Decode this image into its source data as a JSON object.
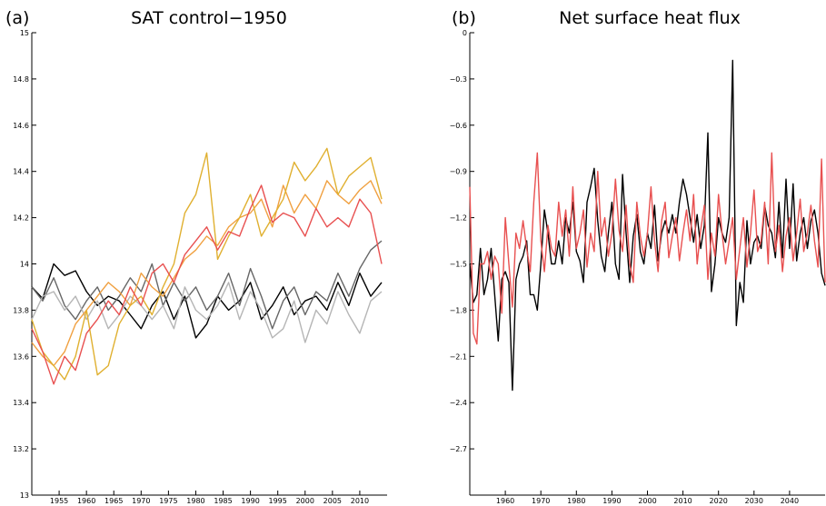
{
  "chart_data": [
    {
      "type": "line",
      "panel_label": "(a)",
      "title": "SAT control−1950",
      "xlabel": "",
      "ylabel": "",
      "xlim": [
        1950,
        2015
      ],
      "ylim": [
        13,
        15
      ],
      "grid": false,
      "legend": "none",
      "x_ticks": [
        1955,
        1960,
        1965,
        1970,
        1975,
        1980,
        1985,
        1990,
        1995,
        2000,
        2005,
        2010
      ],
      "y_ticks": [
        13,
        13.2,
        13.4,
        13.6,
        13.8,
        14,
        14.2,
        14.4,
        14.6,
        14.8,
        15
      ],
      "y_tick_labels": [
        "13",
        "13.2",
        "13.4",
        "13.6",
        "13.8",
        "14",
        "14.2",
        "14.4",
        "14.6",
        "14.8",
        "15"
      ],
      "series": [
        {
          "color": "#000000",
          "x": [
            1950,
            1952,
            1954,
            1956,
            1958,
            1960,
            1962,
            1964,
            1966,
            1968,
            1970,
            1972,
            1974,
            1976,
            1978,
            1980,
            1982,
            1984,
            1986,
            1988,
            1990,
            1992,
            1994,
            1996,
            1998,
            2000,
            2002,
            2004,
            2006,
            2008,
            2010,
            2012,
            2014
          ],
          "y": [
            13.9,
            13.85,
            14.0,
            13.95,
            13.97,
            13.88,
            13.82,
            13.86,
            13.84,
            13.78,
            13.72,
            13.82,
            13.88,
            13.76,
            13.86,
            13.68,
            13.74,
            13.86,
            13.8,
            13.84,
            13.92,
            13.76,
            13.82,
            13.9,
            13.78,
            13.84,
            13.86,
            13.8,
            13.92,
            13.82,
            13.96,
            13.86,
            13.92
          ]
        },
        {
          "color": "#666666",
          "x": [
            1950,
            1952,
            1954,
            1956,
            1958,
            1960,
            1962,
            1964,
            1966,
            1968,
            1970,
            1972,
            1974,
            1976,
            1978,
            1980,
            1982,
            1984,
            1986,
            1988,
            1990,
            1992,
            1994,
            1996,
            1998,
            2000,
            2002,
            2004,
            2006,
            2008,
            2010,
            2012,
            2014
          ],
          "y": [
            13.9,
            13.84,
            13.94,
            13.82,
            13.76,
            13.84,
            13.9,
            13.8,
            13.86,
            13.94,
            13.88,
            14.0,
            13.82,
            13.92,
            13.84,
            13.9,
            13.8,
            13.86,
            13.96,
            13.82,
            13.98,
            13.86,
            13.72,
            13.84,
            13.9,
            13.78,
            13.88,
            13.84,
            13.96,
            13.86,
            13.98,
            14.06,
            14.1
          ]
        },
        {
          "color": "#b5b5b5",
          "x": [
            1950,
            1952,
            1954,
            1956,
            1958,
            1960,
            1962,
            1964,
            1966,
            1968,
            1970,
            1972,
            1974,
            1976,
            1978,
            1980,
            1982,
            1984,
            1986,
            1988,
            1990,
            1992,
            1994,
            1996,
            1998,
            2000,
            2002,
            2004,
            2006,
            2008,
            2010,
            2012,
            2014
          ],
          "y": [
            13.76,
            13.86,
            13.88,
            13.8,
            13.86,
            13.76,
            13.84,
            13.72,
            13.78,
            13.86,
            13.82,
            13.76,
            13.82,
            13.72,
            13.9,
            13.8,
            13.76,
            13.82,
            13.92,
            13.76,
            13.88,
            13.8,
            13.68,
            13.72,
            13.84,
            13.66,
            13.8,
            13.74,
            13.88,
            13.78,
            13.7,
            13.84,
            13.88
          ]
        },
        {
          "color": "#f0a040",
          "x": [
            1950,
            1952,
            1954,
            1956,
            1958,
            1960,
            1962,
            1964,
            1966,
            1968,
            1970,
            1972,
            1974,
            1976,
            1978,
            1980,
            1982,
            1984,
            1986,
            1988,
            1990,
            1992,
            1994,
            1996,
            1998,
            2000,
            2002,
            2004,
            2006,
            2008,
            2010,
            2012,
            2014
          ],
          "y": [
            13.66,
            13.6,
            13.56,
            13.62,
            13.74,
            13.8,
            13.86,
            13.92,
            13.88,
            13.82,
            13.96,
            13.9,
            13.86,
            13.94,
            14.02,
            14.06,
            14.12,
            14.08,
            14.16,
            14.2,
            14.22,
            14.28,
            14.16,
            14.34,
            14.22,
            14.3,
            14.24,
            14.36,
            14.3,
            14.26,
            14.32,
            14.36,
            14.26
          ]
        },
        {
          "color": "#e0b030",
          "x": [
            1950,
            1952,
            1954,
            1956,
            1958,
            1960,
            1962,
            1964,
            1966,
            1968,
            1970,
            1972,
            1974,
            1976,
            1978,
            1980,
            1982,
            1984,
            1986,
            1988,
            1990,
            1992,
            1994,
            1996,
            1998,
            2000,
            2002,
            2004,
            2006,
            2008,
            2010,
            2012,
            2014
          ],
          "y": [
            13.76,
            13.62,
            13.56,
            13.5,
            13.6,
            13.8,
            13.52,
            13.56,
            13.74,
            13.82,
            13.86,
            13.78,
            13.9,
            14.0,
            14.22,
            14.3,
            14.48,
            14.02,
            14.12,
            14.2,
            14.3,
            14.12,
            14.2,
            14.28,
            14.44,
            14.36,
            14.42,
            14.5,
            14.3,
            14.38,
            14.42,
            14.46,
            14.28
          ]
        },
        {
          "color": "#e85050",
          "x": [
            1950,
            1952,
            1954,
            1956,
            1958,
            1960,
            1962,
            1964,
            1966,
            1968,
            1970,
            1972,
            1974,
            1976,
            1978,
            1980,
            1982,
            1984,
            1986,
            1988,
            1990,
            1992,
            1994,
            1996,
            1998,
            2000,
            2002,
            2004,
            2006,
            2008,
            2010,
            2012,
            2014
          ],
          "y": [
            13.72,
            13.62,
            13.48,
            13.6,
            13.54,
            13.7,
            13.76,
            13.84,
            13.78,
            13.9,
            13.82,
            13.96,
            14.0,
            13.92,
            14.04,
            14.1,
            14.16,
            14.06,
            14.14,
            14.12,
            14.24,
            14.34,
            14.18,
            14.22,
            14.2,
            14.12,
            14.24,
            14.16,
            14.2,
            14.16,
            14.28,
            14.22,
            14.0
          ]
        }
      ]
    },
    {
      "type": "line",
      "panel_label": "(b)",
      "title": "Net surface heat flux",
      "xlabel": "",
      "ylabel": "",
      "xlim": [
        1950,
        2050
      ],
      "ylim": [
        -3,
        0
      ],
      "grid": false,
      "legend": "none",
      "x_ticks": [
        1960,
        1970,
        1980,
        1990,
        2000,
        2010,
        2020,
        2030,
        2040
      ],
      "y_ticks": [
        -3,
        -2.7,
        -2.4,
        -2.1,
        -1.8,
        -1.5,
        -1.2,
        -0.9,
        -0.6,
        -0.3,
        0
      ],
      "y_tick_labels": [
        "",
        "−2.7",
        "−2.4",
        "−2.1",
        "−1.8",
        "−1.5",
        "−1.2",
        "−0.9",
        "−0.6",
        "−0.3",
        "0"
      ],
      "series": [
        {
          "color": "#000000",
          "x": [
            1950,
            1951,
            1952,
            1953,
            1954,
            1955,
            1956,
            1957,
            1958,
            1959,
            1960,
            1961,
            1962,
            1963,
            1964,
            1965,
            1966,
            1967,
            1968,
            1969,
            1970,
            1971,
            1972,
            1973,
            1974,
            1975,
            1976,
            1977,
            1978,
            1979,
            1980,
            1981,
            1982,
            1983,
            1984,
            1985,
            1986,
            1987,
            1988,
            1989,
            1990,
            1991,
            1992,
            1993,
            1994,
            1995,
            1996,
            1997,
            1998,
            1999,
            2000,
            2001,
            2002,
            2003,
            2004,
            2005,
            2006,
            2007,
            2008,
            2009,
            2010,
            2011,
            2012,
            2013,
            2014,
            2015,
            2016,
            2017,
            2018,
            2019,
            2020,
            2021,
            2022,
            2023,
            2024,
            2025,
            2026,
            2027,
            2028,
            2029,
            2030,
            2031,
            2032,
            2033,
            2034,
            2035,
            2036,
            2037,
            2038,
            2039,
            2040,
            2041,
            2042,
            2043,
            2044,
            2045,
            2046,
            2047,
            2048,
            2049,
            2050
          ],
          "y": [
            -1.5,
            -1.75,
            -1.7,
            -1.4,
            -1.7,
            -1.6,
            -1.4,
            -1.7,
            -2.0,
            -1.6,
            -1.55,
            -1.62,
            -2.32,
            -1.6,
            -1.5,
            -1.45,
            -1.35,
            -1.7,
            -1.7,
            -1.8,
            -1.5,
            -1.15,
            -1.3,
            -1.5,
            -1.5,
            -1.35,
            -1.5,
            -1.2,
            -1.3,
            -1.1,
            -1.42,
            -1.48,
            -1.62,
            -1.1,
            -1.0,
            -0.88,
            -1.22,
            -1.45,
            -1.55,
            -1.3,
            -1.1,
            -1.5,
            -1.6,
            -0.92,
            -1.3,
            -1.62,
            -1.32,
            -1.18,
            -1.42,
            -1.5,
            -1.3,
            -1.4,
            -1.12,
            -1.48,
            -1.3,
            -1.22,
            -1.3,
            -1.18,
            -1.3,
            -1.1,
            -0.95,
            -1.05,
            -1.2,
            -1.36,
            -1.18,
            -1.4,
            -1.25,
            -0.65,
            -1.68,
            -1.5,
            -1.2,
            -1.3,
            -1.36,
            -1.2,
            -0.18,
            -1.9,
            -1.62,
            -1.75,
            -1.22,
            -1.5,
            -1.36,
            -1.32,
            -1.4,
            -1.12,
            -1.25,
            -1.3,
            -1.46,
            -1.1,
            -1.46,
            -0.95,
            -1.4,
            -0.98,
            -1.48,
            -1.3,
            -1.2,
            -1.4,
            -1.22,
            -1.15,
            -1.3,
            -1.56,
            -1.64
          ]
        },
        {
          "color": "#e85050",
          "x": [
            1950,
            1951,
            1952,
            1953,
            1954,
            1955,
            1956,
            1957,
            1958,
            1959,
            1960,
            1961,
            1962,
            1963,
            1964,
            1965,
            1966,
            1967,
            1968,
            1969,
            1970,
            1971,
            1972,
            1973,
            1974,
            1975,
            1976,
            1977,
            1978,
            1979,
            1980,
            1981,
            1982,
            1983,
            1984,
            1985,
            1986,
            1987,
            1988,
            1989,
            1990,
            1991,
            1992,
            1993,
            1994,
            1995,
            1996,
            1997,
            1998,
            1999,
            2000,
            2001,
            2002,
            2003,
            2004,
            2005,
            2006,
            2007,
            2008,
            2009,
            2010,
            2011,
            2012,
            2013,
            2014,
            2015,
            2016,
            2017,
            2018,
            2019,
            2020,
            2021,
            2022,
            2023,
            2024,
            2025,
            2026,
            2027,
            2028,
            2029,
            2030,
            2031,
            2032,
            2033,
            2034,
            2035,
            2036,
            2037,
            2038,
            2039,
            2040,
            2041,
            2042,
            2043,
            2044,
            2045,
            2046,
            2047,
            2048,
            2049,
            2050
          ],
          "y": [
            -1.0,
            -1.95,
            -2.02,
            -1.5,
            -1.5,
            -1.42,
            -1.6,
            -1.45,
            -1.5,
            -1.82,
            -1.2,
            -1.5,
            -1.78,
            -1.3,
            -1.4,
            -1.22,
            -1.4,
            -1.55,
            -1.1,
            -0.78,
            -1.35,
            -1.55,
            -1.25,
            -1.4,
            -1.45,
            -1.1,
            -1.32,
            -1.15,
            -1.45,
            -1.0,
            -1.4,
            -1.3,
            -1.15,
            -1.52,
            -1.3,
            -1.42,
            -0.9,
            -1.32,
            -1.2,
            -1.45,
            -1.3,
            -0.95,
            -1.28,
            -1.42,
            -1.12,
            -1.5,
            -1.62,
            -1.1,
            -1.32,
            -1.45,
            -1.3,
            -1.0,
            -1.35,
            -1.55,
            -1.22,
            -1.1,
            -1.46,
            -1.32,
            -1.2,
            -1.48,
            -1.3,
            -1.15,
            -1.35,
            -1.05,
            -1.5,
            -1.28,
            -1.12,
            -1.6,
            -1.3,
            -1.45,
            -1.05,
            -1.3,
            -1.5,
            -1.35,
            -1.2,
            -1.6,
            -1.4,
            -1.2,
            -1.52,
            -1.3,
            -1.02,
            -1.42,
            -1.35,
            -1.1,
            -1.5,
            -0.78,
            -1.42,
            -1.25,
            -1.55,
            -1.32,
            -1.2,
            -1.48,
            -1.3,
            -1.08,
            -1.42,
            -1.3,
            -1.12,
            -1.35,
            -1.52,
            -0.82,
            -1.62
          ]
        }
      ]
    }
  ]
}
